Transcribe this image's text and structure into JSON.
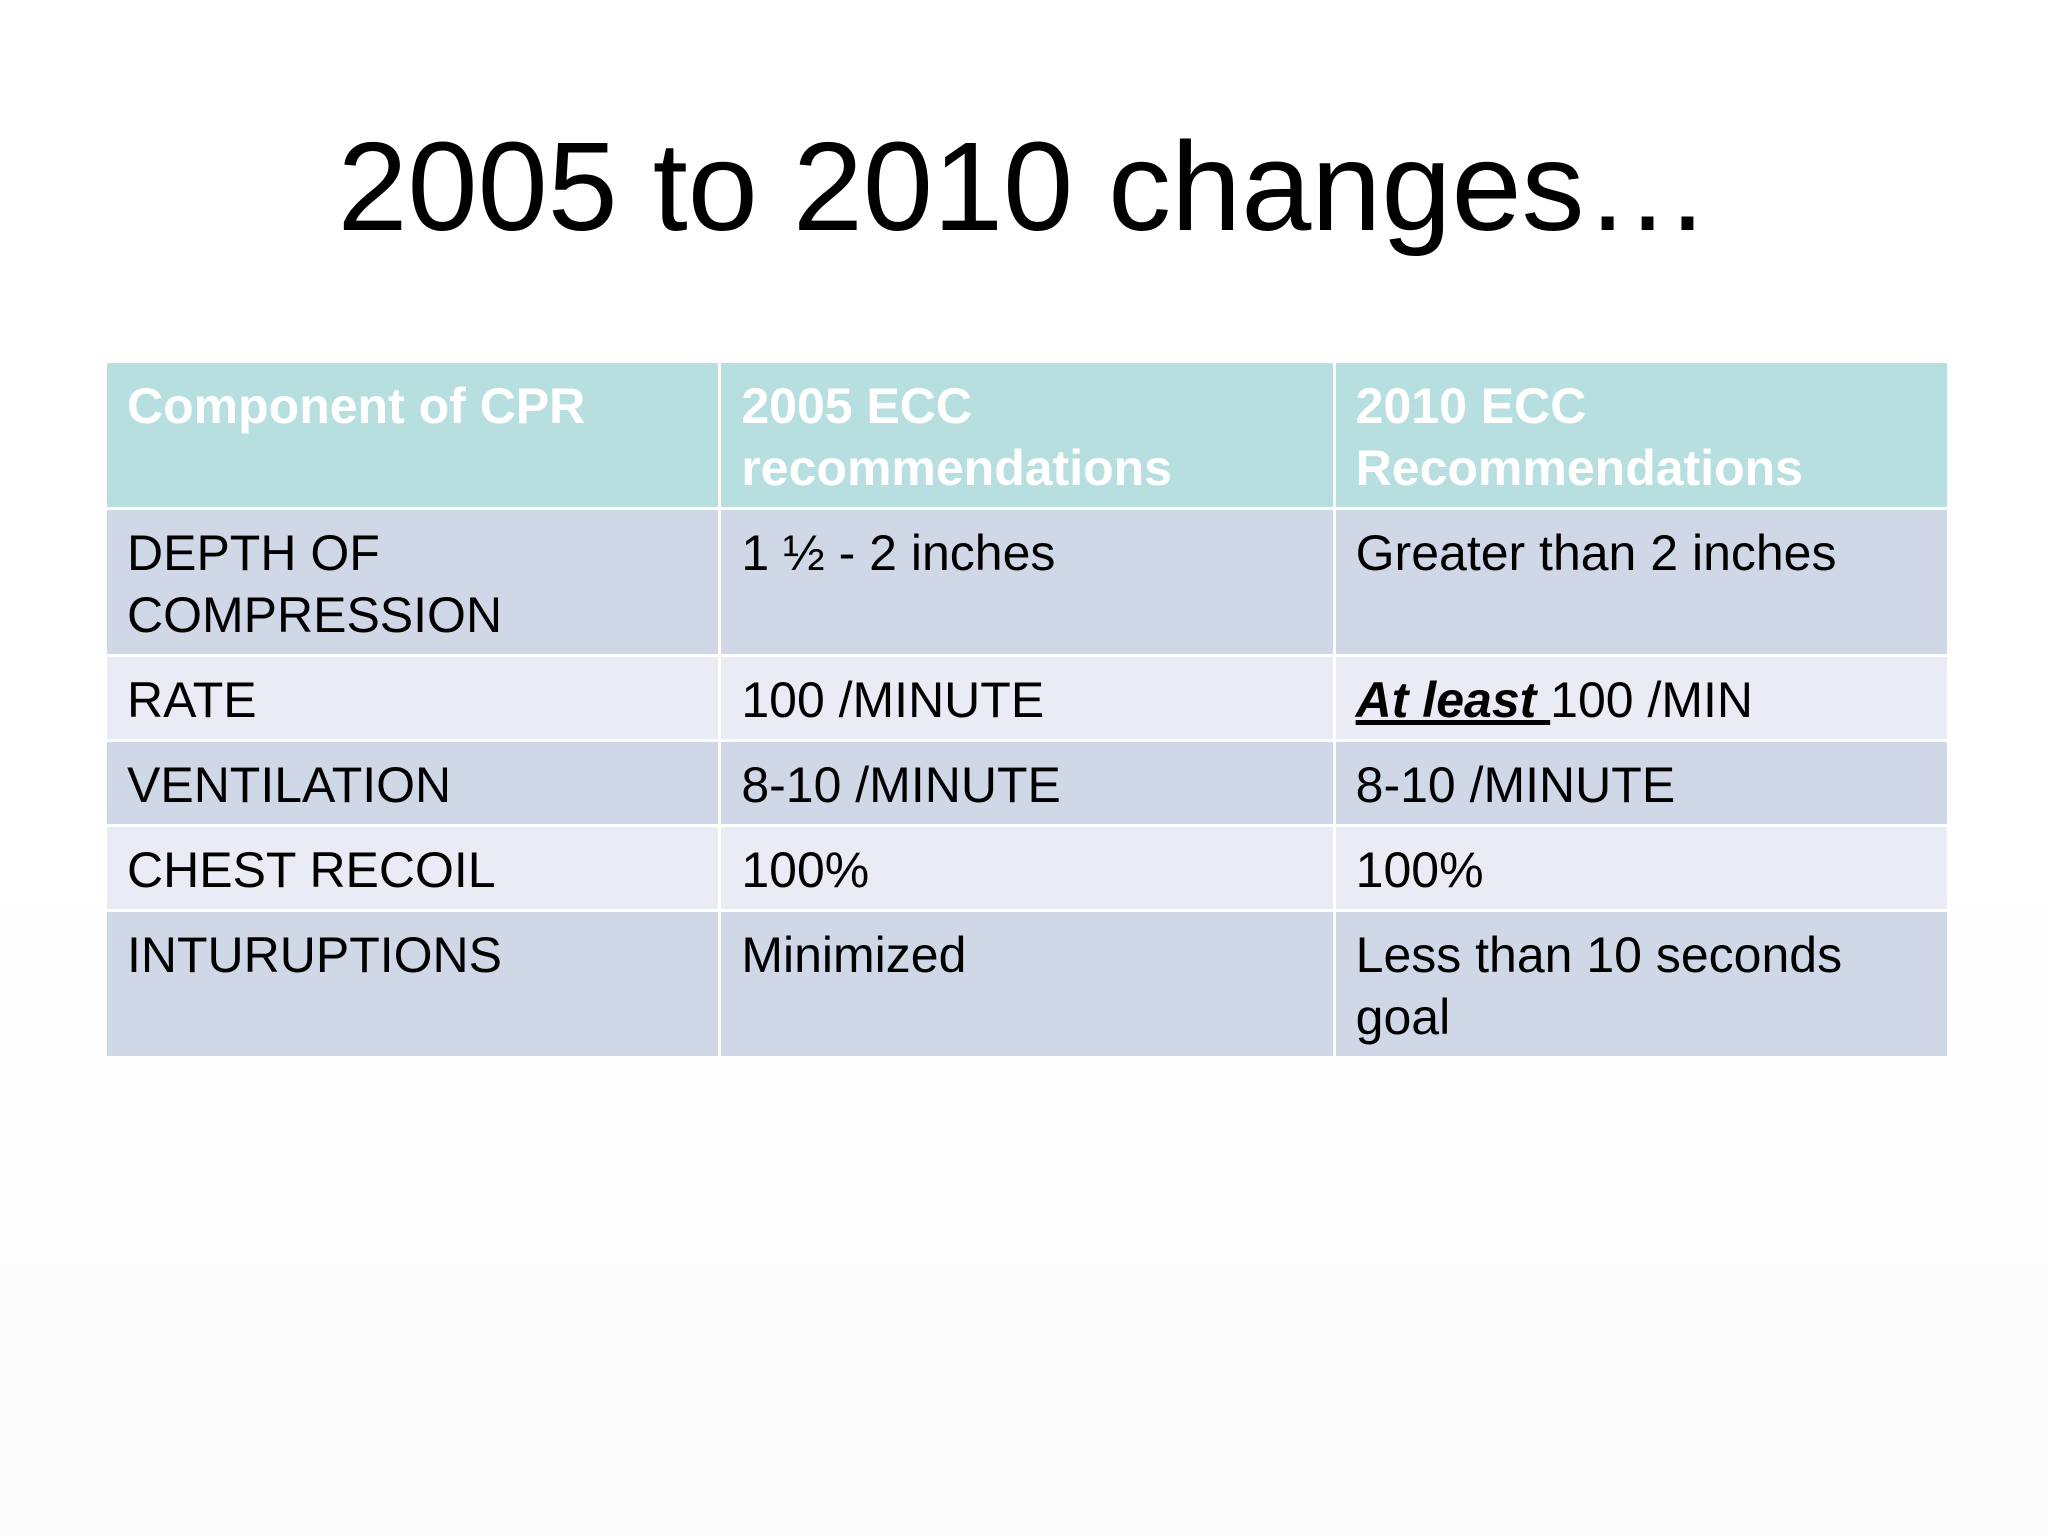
{
  "slide": {
    "title": "2005 to 2010 changes…"
  },
  "table": {
    "headers": [
      "Component of CPR",
      "2005 ECC recommendations",
      "2010 ECC Recommendations"
    ],
    "rows": [
      {
        "component": "DEPTH OF COMPRESSION",
        "ecc_2005": "1 ½ - 2 inches",
        "ecc_2010": "Greater than 2 inches"
      },
      {
        "component": "RATE",
        "ecc_2005": "100 /MINUTE",
        "ecc_2010_emphasis": "At least ",
        "ecc_2010_rest": "100 /MIN"
      },
      {
        "component": "VENTILATION",
        "ecc_2005": "8-10 /MINUTE",
        "ecc_2010": "8-10 /MINUTE"
      },
      {
        "component": "CHEST RECOIL",
        "ecc_2005": "100%",
        "ecc_2010": "100%"
      },
      {
        "component": "INTURUPTIONS",
        "ecc_2005": "Minimized",
        "ecc_2010": "Less than 10 seconds goal"
      }
    ]
  },
  "colors": {
    "header_fill": "#b8dfe0",
    "row_dark": "#d0d8e8",
    "row_light": "#e9ecf4"
  }
}
